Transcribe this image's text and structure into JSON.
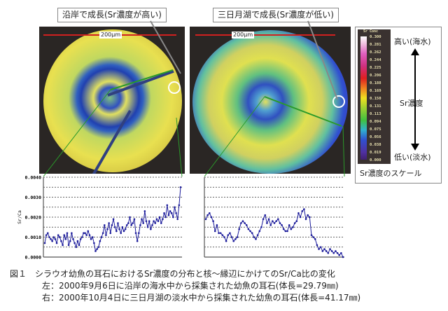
{
  "callouts": {
    "left": "沿岸で成長(Sr濃度が高い)",
    "right": "三日月湖で成長(Sr濃度が低い)"
  },
  "scale_bar": {
    "left": "200μm",
    "right": "200μm"
  },
  "legend": {
    "title": "Sr Conc",
    "ticks": [
      "0.300",
      "0.281",
      "0.262",
      "0.244",
      "0.225",
      "0.206",
      "0.188",
      "0.169",
      "0.150",
      "0.131",
      "0.113",
      "0.094",
      "0.075",
      "0.056",
      "0.038",
      "0.019",
      "0.000"
    ],
    "high": "高い(海水)",
    "mid": "Sr濃度",
    "low": "低い(淡水)",
    "caption": "Sr濃度のスケール"
  },
  "colors": {
    "series": "#1a1a9a",
    "connector": "#2a9a2a",
    "arrow": "#d02020"
  },
  "caption": {
    "line1": "図１　シラウオ幼魚の耳石におけるSr濃度の分布と核～縁辺にかけてのSr/Ca比の変化",
    "line2": "左：2000年9月6日に沿岸の海水中から採集された幼魚の耳石(体長=29.79㎜)",
    "line3": "右：2000年10月4日に三日月湖の淡水中から採集された幼魚の耳石(体長=41.17㎜)"
  },
  "chart_data": [
    {
      "type": "line",
      "ylabel": "Sr/Ca",
      "ylim": [
        0,
        0.004
      ],
      "yticks": [
        "0.0040",
        "0.0030",
        "0.0020",
        "0.0010",
        "0.0000"
      ],
      "grid": "dashed horizontal every 0.0005",
      "values": [
        0.0007,
        0.0011,
        0.0012,
        0.001,
        0.0009,
        0.0008,
        0.001,
        0.0009,
        0.0007,
        0.0011,
        0.001,
        0.0008,
        0.0006,
        0.0011,
        0.0009,
        0.0012,
        0.0006,
        0.0008,
        0.0012,
        0.0009,
        0.0007,
        0.0005,
        0.0008,
        0.0006,
        0.0009,
        0.001,
        0.0012,
        0.0012,
        0.0011,
        0.0013,
        0.0011,
        0.0009,
        0.001,
        0.0007,
        0.0003,
        0.0004,
        0.0005,
        0.0008,
        0.001,
        0.0012,
        0.0016,
        0.0011,
        0.0014,
        0.0017,
        0.0012,
        0.0016,
        0.0019,
        0.0015,
        0.0013,
        0.0017,
        0.0014,
        0.0012,
        0.0015,
        0.0013,
        0.0014,
        0.0016,
        0.0017,
        0.002,
        0.0016,
        0.0017,
        0.0019,
        0.0012,
        0.0008,
        0.0012,
        0.0016,
        0.0019,
        0.0017,
        0.0023,
        0.0018,
        0.0015,
        0.0018,
        0.0014,
        0.0016,
        0.0018,
        0.0017,
        0.0019,
        0.0018,
        0.002,
        0.0017,
        0.0019,
        0.0022,
        0.002,
        0.0026,
        0.0021,
        0.0023,
        0.0022,
        0.002,
        0.0025,
        0.0022,
        0.0019,
        0.0026,
        0.0035
      ]
    },
    {
      "type": "line",
      "ylim": [
        0,
        0.004
      ],
      "grid": "dashed horizontal every 0.0005",
      "values": [
        0.0019,
        0.0021,
        0.0022,
        0.002,
        0.0018,
        0.0013,
        0.0016,
        0.0012,
        0.0012,
        0.0011,
        0.001,
        0.0008,
        0.0011,
        0.0012,
        0.001,
        0.0008,
        0.0009,
        0.001,
        0.0014,
        0.0017,
        0.0018,
        0.0017,
        0.0016,
        0.0014,
        0.0013,
        0.0012,
        0.001,
        0.0009,
        0.0011,
        0.0013,
        0.0015,
        0.0019,
        0.0021,
        0.0017,
        0.0019,
        0.0016,
        0.0018,
        0.0017,
        0.0018,
        0.0019,
        0.0017,
        0.0016,
        0.0014,
        0.0013,
        0.0013,
        0.0016,
        0.0014,
        0.0015,
        0.0017,
        0.0018,
        0.0022,
        0.002,
        0.0023,
        0.0024,
        0.0019,
        0.0021,
        0.002,
        0.0011,
        0.001,
        0.0009,
        0.0006,
        0.0004,
        0.0005,
        0.0003,
        0.0004,
        0.0003,
        0.0002,
        0.0004,
        0.0003,
        0.0002,
        0.0003,
        0.0002,
        0.0001,
        0.0002,
        0.0
      ]
    }
  ]
}
